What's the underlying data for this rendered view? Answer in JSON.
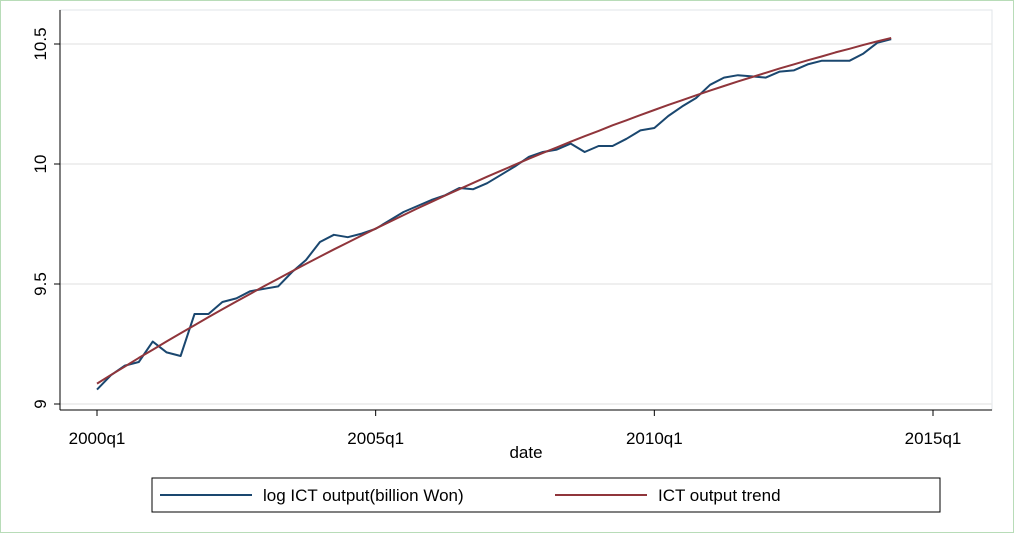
{
  "chart_data": {
    "type": "line",
    "x_label": "date",
    "x": [
      "2000q1",
      "2000q2",
      "2000q3",
      "2000q4",
      "2001q1",
      "2001q2",
      "2001q3",
      "2001q4",
      "2002q1",
      "2002q2",
      "2002q3",
      "2002q4",
      "2003q1",
      "2003q2",
      "2003q3",
      "2003q4",
      "2004q1",
      "2004q2",
      "2004q3",
      "2004q4",
      "2005q1",
      "2005q2",
      "2005q3",
      "2005q4",
      "2006q1",
      "2006q2",
      "2006q3",
      "2006q4",
      "2007q1",
      "2007q2",
      "2007q3",
      "2007q4",
      "2008q1",
      "2008q2",
      "2008q3",
      "2008q4",
      "2009q1",
      "2009q2",
      "2009q3",
      "2009q4",
      "2010q1",
      "2010q2",
      "2010q3",
      "2010q4",
      "2011q1",
      "2011q2",
      "2011q3",
      "2011q4",
      "2012q1",
      "2012q2",
      "2012q3",
      "2012q4",
      "2013q1",
      "2013q2",
      "2013q3",
      "2013q4",
      "2014q1",
      "2014q2"
    ],
    "series": [
      {
        "name": "log ICT output(billion Won)",
        "color": "#1a476f",
        "values": [
          9.06,
          9.12,
          9.16,
          9.175,
          9.26,
          9.215,
          9.2,
          9.375,
          9.375,
          9.425,
          9.44,
          9.47,
          9.48,
          9.49,
          9.55,
          9.6,
          9.675,
          9.705,
          9.695,
          9.71,
          9.73,
          9.765,
          9.8,
          9.825,
          9.85,
          9.87,
          9.9,
          9.895,
          9.92,
          9.955,
          9.99,
          10.03,
          10.05,
          10.06,
          10.085,
          10.05,
          10.075,
          10.075,
          10.105,
          10.14,
          10.15,
          10.2,
          10.24,
          10.275,
          10.33,
          10.36,
          10.37,
          10.365,
          10.36,
          10.385,
          10.39,
          10.415,
          10.43,
          10.43,
          10.43,
          10.46,
          10.505,
          10.52
        ]
      },
      {
        "name": "ICT output trend",
        "color": "#90353b",
        "values": [
          9.085,
          9.121,
          9.156,
          9.192,
          9.226,
          9.261,
          9.295,
          9.328,
          9.362,
          9.395,
          9.427,
          9.459,
          9.491,
          9.522,
          9.553,
          9.584,
          9.614,
          9.644,
          9.673,
          9.702,
          9.731,
          9.759,
          9.787,
          9.815,
          9.842,
          9.869,
          9.895,
          9.921,
          9.947,
          9.972,
          9.997,
          10.022,
          10.046,
          10.069,
          10.093,
          10.116,
          10.138,
          10.161,
          10.182,
          10.204,
          10.225,
          10.246,
          10.266,
          10.286,
          10.306,
          10.325,
          10.344,
          10.362,
          10.38,
          10.398,
          10.415,
          10.432,
          10.448,
          10.465,
          10.48,
          10.496,
          10.511,
          10.525
        ]
      }
    ],
    "xlim": [
      "2000q1",
      "2015q1"
    ],
    "xticks": [
      "2000q1",
      "2005q1",
      "2010q1",
      "2015q1"
    ],
    "ylim": [
      9,
      10.5
    ],
    "yticks": [
      9,
      9.5,
      10,
      10.5
    ],
    "grid": true,
    "legend": "bottom"
  }
}
